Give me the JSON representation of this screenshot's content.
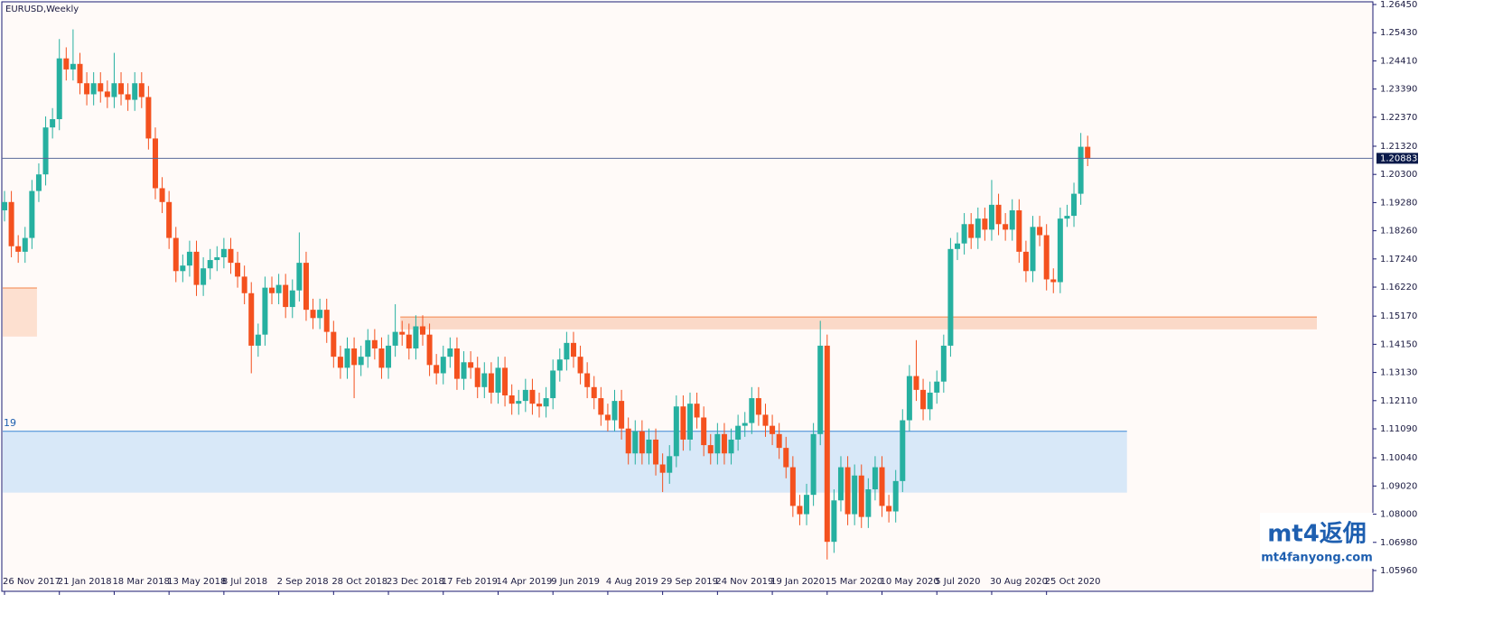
{
  "chart_data": {
    "type": "candlestick",
    "title": "EURUSD,Weekly",
    "categories": [
      "26 Nov 2017",
      null,
      null,
      null,
      null,
      null,
      null,
      null,
      "21 Jan 2018",
      null,
      null,
      null,
      null,
      null,
      null,
      null,
      "18 Mar 2018",
      null,
      null,
      null,
      null,
      null,
      null,
      null,
      "13 May 2018",
      null,
      null,
      null,
      null,
      null,
      null,
      null,
      "8 Jul 2018",
      null,
      null,
      null,
      null,
      null,
      null,
      null,
      "2 Sep 2018",
      null,
      null,
      null,
      null,
      null,
      null,
      null,
      "28 Oct 2018",
      null,
      null,
      null,
      null,
      null,
      null,
      null,
      "23 Dec 2018",
      null,
      null,
      null,
      null,
      null,
      null,
      null,
      "17 Feb 2019",
      null,
      null,
      null,
      null,
      null,
      null,
      null,
      "14 Apr 2019",
      null,
      null,
      null,
      null,
      null,
      null,
      null,
      "9 Jun 2019",
      null,
      null,
      null,
      null,
      null,
      null,
      null,
      "4 Aug 2019",
      null,
      null,
      null,
      null,
      null,
      null,
      null,
      "29 Sep 2019",
      null,
      null,
      null,
      null,
      null,
      null,
      null,
      "24 Nov 2019",
      null,
      null,
      null,
      null,
      null,
      null,
      null,
      "19 Jan 2020",
      null,
      null,
      null,
      null,
      null,
      null,
      null,
      "15 Mar 2020",
      null,
      null,
      null,
      null,
      null,
      null,
      null,
      "10 May 2020",
      null,
      null,
      null,
      null,
      null,
      null,
      null,
      "5 Jul 2020",
      null,
      null,
      null,
      null,
      null,
      null,
      null,
      "30 Aug 2020",
      null,
      null,
      null,
      null,
      null,
      null,
      null,
      "25 Oct 2020",
      null,
      null,
      null,
      null,
      null,
      null
    ],
    "ohlc": [
      [
        1.19,
        1.197,
        1.186,
        1.193
      ],
      [
        1.193,
        1.197,
        1.173,
        1.177
      ],
      [
        1.177,
        1.181,
        1.171,
        1.175
      ],
      [
        1.175,
        1.184,
        1.171,
        1.18
      ],
      [
        1.18,
        1.201,
        1.176,
        1.197
      ],
      [
        1.197,
        1.207,
        1.193,
        1.203
      ],
      [
        1.203,
        1.224,
        1.199,
        1.22
      ],
      [
        1.22,
        1.227,
        1.216,
        1.223
      ],
      [
        1.223,
        1.252,
        1.219,
        1.245
      ],
      [
        1.245,
        1.249,
        1.237,
        1.241
      ],
      [
        1.241,
        1.2555,
        1.237,
        1.243
      ],
      [
        1.243,
        1.247,
        1.232,
        1.236
      ],
      [
        1.236,
        1.24,
        1.228,
        1.232
      ],
      [
        1.232,
        1.24,
        1.228,
        1.236
      ],
      [
        1.236,
        1.24,
        1.229,
        1.233
      ],
      [
        1.233,
        1.237,
        1.227,
        1.231
      ],
      [
        1.231,
        1.247,
        1.227,
        1.236
      ],
      [
        1.236,
        1.24,
        1.228,
        1.232
      ],
      [
        1.232,
        1.236,
        1.226,
        1.23
      ],
      [
        1.23,
        1.24,
        1.226,
        1.236
      ],
      [
        1.236,
        1.24,
        1.227,
        1.231
      ],
      [
        1.231,
        1.235,
        1.212,
        1.216
      ],
      [
        1.216,
        1.22,
        1.194,
        1.198
      ],
      [
        1.198,
        1.202,
        1.189,
        1.193
      ],
      [
        1.193,
        1.197,
        1.176,
        1.18
      ],
      [
        1.18,
        1.184,
        1.164,
        1.168
      ],
      [
        1.168,
        1.174,
        1.164,
        1.17
      ],
      [
        1.17,
        1.179,
        1.166,
        1.175
      ],
      [
        1.175,
        1.179,
        1.159,
        1.163
      ],
      [
        1.163,
        1.173,
        1.159,
        1.169
      ],
      [
        1.169,
        1.176,
        1.165,
        1.172
      ],
      [
        1.172,
        1.177,
        1.168,
        1.173
      ],
      [
        1.173,
        1.18,
        1.169,
        1.176
      ],
      [
        1.176,
        1.18,
        1.167,
        1.171
      ],
      [
        1.171,
        1.175,
        1.162,
        1.166
      ],
      [
        1.166,
        1.17,
        1.156,
        1.16
      ],
      [
        1.16,
        1.164,
        1.131,
        1.141
      ],
      [
        1.141,
        1.149,
        1.137,
        1.145
      ],
      [
        1.145,
        1.166,
        1.141,
        1.162
      ],
      [
        1.162,
        1.166,
        1.156,
        1.16
      ],
      [
        1.16,
        1.167,
        1.156,
        1.163
      ],
      [
        1.163,
        1.167,
        1.151,
        1.155
      ],
      [
        1.155,
        1.165,
        1.151,
        1.161
      ],
      [
        1.161,
        1.182,
        1.157,
        1.171
      ],
      [
        1.171,
        1.175,
        1.15,
        1.154
      ],
      [
        1.154,
        1.158,
        1.147,
        1.151
      ],
      [
        1.151,
        1.158,
        1.147,
        1.154
      ],
      [
        1.154,
        1.158,
        1.142,
        1.146
      ],
      [
        1.146,
        1.15,
        1.133,
        1.137
      ],
      [
        1.137,
        1.141,
        1.129,
        1.133
      ],
      [
        1.133,
        1.144,
        1.129,
        1.14
      ],
      [
        1.14,
        1.144,
        1.122,
        1.134
      ],
      [
        1.134,
        1.141,
        1.13,
        1.137
      ],
      [
        1.137,
        1.147,
        1.133,
        1.143
      ],
      [
        1.143,
        1.147,
        1.136,
        1.14
      ],
      [
        1.14,
        1.144,
        1.129,
        1.133
      ],
      [
        1.133,
        1.145,
        1.129,
        1.141
      ],
      [
        1.141,
        1.156,
        1.137,
        1.146
      ],
      [
        1.146,
        1.15,
        1.141,
        1.145
      ],
      [
        1.145,
        1.149,
        1.136,
        1.14
      ],
      [
        1.14,
        1.152,
        1.136,
        1.148
      ],
      [
        1.148,
        1.152,
        1.141,
        1.145
      ],
      [
        1.145,
        1.149,
        1.13,
        1.134
      ],
      [
        1.134,
        1.138,
        1.127,
        1.131
      ],
      [
        1.131,
        1.141,
        1.127,
        1.137
      ],
      [
        1.137,
        1.144,
        1.133,
        1.14
      ],
      [
        1.14,
        1.144,
        1.125,
        1.129
      ],
      [
        1.129,
        1.139,
        1.125,
        1.135
      ],
      [
        1.135,
        1.139,
        1.129,
        1.133
      ],
      [
        1.133,
        1.137,
        1.122,
        1.126
      ],
      [
        1.126,
        1.135,
        1.122,
        1.131
      ],
      [
        1.131,
        1.135,
        1.12,
        1.124
      ],
      [
        1.124,
        1.137,
        1.12,
        1.133
      ],
      [
        1.133,
        1.137,
        1.119,
        1.123
      ],
      [
        1.123,
        1.127,
        1.116,
        1.12
      ],
      [
        1.12,
        1.125,
        1.116,
        1.121
      ],
      [
        1.121,
        1.129,
        1.117,
        1.125
      ],
      [
        1.125,
        1.129,
        1.116,
        1.12
      ],
      [
        1.12,
        1.124,
        1.115,
        1.119
      ],
      [
        1.119,
        1.126,
        1.115,
        1.122
      ],
      [
        1.122,
        1.136,
        1.118,
        1.132
      ],
      [
        1.132,
        1.14,
        1.128,
        1.136
      ],
      [
        1.136,
        1.146,
        1.132,
        1.142
      ],
      [
        1.142,
        1.146,
        1.133,
        1.137
      ],
      [
        1.137,
        1.141,
        1.127,
        1.131
      ],
      [
        1.131,
        1.135,
        1.122,
        1.126
      ],
      [
        1.126,
        1.13,
        1.118,
        1.122
      ],
      [
        1.122,
        1.126,
        1.112,
        1.116
      ],
      [
        1.116,
        1.12,
        1.11,
        1.114
      ],
      [
        1.114,
        1.125,
        1.11,
        1.121
      ],
      [
        1.121,
        1.125,
        1.107,
        1.111
      ],
      [
        1.111,
        1.115,
        1.098,
        1.102
      ],
      [
        1.102,
        1.114,
        1.098,
        1.11
      ],
      [
        1.11,
        1.114,
        1.098,
        1.102
      ],
      [
        1.102,
        1.111,
        1.098,
        1.107
      ],
      [
        1.107,
        1.111,
        1.094,
        1.098
      ],
      [
        1.098,
        1.102,
        1.088,
        1.095
      ],
      [
        1.095,
        1.105,
        1.091,
        1.101
      ],
      [
        1.101,
        1.123,
        1.097,
        1.119
      ],
      [
        1.119,
        1.123,
        1.103,
        1.107
      ],
      [
        1.107,
        1.124,
        1.103,
        1.12
      ],
      [
        1.12,
        1.124,
        1.111,
        1.115
      ],
      [
        1.115,
        1.119,
        1.101,
        1.105
      ],
      [
        1.105,
        1.109,
        1.098,
        1.102
      ],
      [
        1.102,
        1.113,
        1.098,
        1.109
      ],
      [
        1.109,
        1.113,
        1.098,
        1.102
      ],
      [
        1.102,
        1.111,
        1.098,
        1.107
      ],
      [
        1.107,
        1.116,
        1.103,
        1.112
      ],
      [
        1.112,
        1.117,
        1.108,
        1.113
      ],
      [
        1.113,
        1.126,
        1.109,
        1.122
      ],
      [
        1.122,
        1.126,
        1.112,
        1.116
      ],
      [
        1.116,
        1.12,
        1.108,
        1.112
      ],
      [
        1.112,
        1.116,
        1.105,
        1.109
      ],
      [
        1.109,
        1.113,
        1.1,
        1.104
      ],
      [
        1.104,
        1.108,
        1.093,
        1.097
      ],
      [
        1.097,
        1.101,
        1.079,
        1.083
      ],
      [
        1.083,
        1.087,
        1.076,
        1.08
      ],
      [
        1.08,
        1.091,
        1.076,
        1.087
      ],
      [
        1.087,
        1.113,
        1.083,
        1.109
      ],
      [
        1.109,
        1.15,
        1.105,
        1.141
      ],
      [
        1.141,
        1.145,
        1.0636,
        1.07
      ],
      [
        1.07,
        1.089,
        1.066,
        1.085
      ],
      [
        1.085,
        1.101,
        1.081,
        1.097
      ],
      [
        1.097,
        1.101,
        1.076,
        1.08
      ],
      [
        1.08,
        1.098,
        1.076,
        1.094
      ],
      [
        1.094,
        1.098,
        1.075,
        1.079
      ],
      [
        1.079,
        1.093,
        1.075,
        1.089
      ],
      [
        1.089,
        1.101,
        1.085,
        1.097
      ],
      [
        1.097,
        1.101,
        1.079,
        1.083
      ],
      [
        1.083,
        1.087,
        1.077,
        1.081
      ],
      [
        1.081,
        1.096,
        1.077,
        1.092
      ],
      [
        1.092,
        1.118,
        1.088,
        1.114
      ],
      [
        1.114,
        1.134,
        1.11,
        1.13
      ],
      [
        1.13,
        1.143,
        1.121,
        1.125
      ],
      [
        1.125,
        1.129,
        1.114,
        1.118
      ],
      [
        1.118,
        1.128,
        1.114,
        1.124
      ],
      [
        1.124,
        1.132,
        1.12,
        1.128
      ],
      [
        1.128,
        1.145,
        1.124,
        1.141
      ],
      [
        1.141,
        1.18,
        1.137,
        1.176
      ],
      [
        1.176,
        1.182,
        1.172,
        1.178
      ],
      [
        1.178,
        1.189,
        1.174,
        1.185
      ],
      [
        1.185,
        1.189,
        1.176,
        1.18
      ],
      [
        1.18,
        1.191,
        1.176,
        1.187
      ],
      [
        1.187,
        1.191,
        1.179,
        1.183
      ],
      [
        1.183,
        1.201,
        1.179,
        1.192
      ],
      [
        1.192,
        1.196,
        1.181,
        1.185
      ],
      [
        1.185,
        1.189,
        1.179,
        1.183
      ],
      [
        1.183,
        1.194,
        1.179,
        1.19
      ],
      [
        1.19,
        1.194,
        1.171,
        1.175
      ],
      [
        1.175,
        1.179,
        1.164,
        1.168
      ],
      [
        1.168,
        1.188,
        1.164,
        1.184
      ],
      [
        1.184,
        1.188,
        1.177,
        1.181
      ],
      [
        1.181,
        1.185,
        1.161,
        1.165
      ],
      [
        1.165,
        1.169,
        1.16,
        1.164
      ],
      [
        1.164,
        1.191,
        1.16,
        1.187
      ],
      [
        1.187,
        1.192,
        1.184,
        1.188
      ],
      [
        1.188,
        1.2,
        1.184,
        1.196
      ],
      [
        1.196,
        1.218,
        1.192,
        1.213
      ],
      [
        1.213,
        1.217,
        1.206,
        1.2088
      ]
    ],
    "up_color": "#26b0a0",
    "down_color": "#f4511e",
    "ylim": [
      1.0596,
      1.2645
    ],
    "yticks": [
      {
        "value": 1.2645,
        "label": "1.26450"
      },
      {
        "value": 1.2543,
        "label": "1.25430"
      },
      {
        "value": 1.2441,
        "label": "1.24410"
      },
      {
        "value": 1.2339,
        "label": "1.23390"
      },
      {
        "value": 1.2237,
        "label": "1.22370"
      },
      {
        "value": 1.2132,
        "label": "1.21320"
      },
      {
        "value": 1.203,
        "label": "1.20300"
      },
      {
        "value": 1.1928,
        "label": "1.19280"
      },
      {
        "value": 1.1826,
        "label": "1.18260"
      },
      {
        "value": 1.1724,
        "label": "1.17240"
      },
      {
        "value": 1.1622,
        "label": "1.16220"
      },
      {
        "value": 1.1517,
        "label": "1.15170"
      },
      {
        "value": 1.1415,
        "label": "1.14150"
      },
      {
        "value": 1.1313,
        "label": "1.13130"
      },
      {
        "value": 1.1211,
        "label": "1.12110"
      },
      {
        "value": 1.1109,
        "label": "1.11090"
      },
      {
        "value": 1.1004,
        "label": "1.10040"
      },
      {
        "value": 1.0902,
        "label": "1.09020"
      },
      {
        "value": 1.08,
        "label": "1.08000"
      },
      {
        "value": 1.0698,
        "label": "1.06980"
      },
      {
        "value": 1.0596,
        "label": "1.05960"
      }
    ],
    "current_price": {
      "value": 1.20883,
      "label": "1.20883"
    },
    "zones": [
      {
        "from": 1.11,
        "to": 1.0878,
        "start": 0,
        "end": 164,
        "color": "#d8e8f8",
        "line": "#3a86d6"
      },
      {
        "from": 1.1514,
        "to": 1.1469,
        "start": 58,
        "end": 192,
        "color": "#fbd9c8",
        "line": "#f4844a"
      },
      {
        "from": 1.1619,
        "to": 1.1443,
        "start": 0,
        "end": 5,
        "color": "#fde0d0",
        "line": "#f4844a"
      }
    ],
    "zone_label": "19",
    "watermark": {
      "brand": "mt4返佣",
      "site": "mt4fanyong.com"
    }
  }
}
